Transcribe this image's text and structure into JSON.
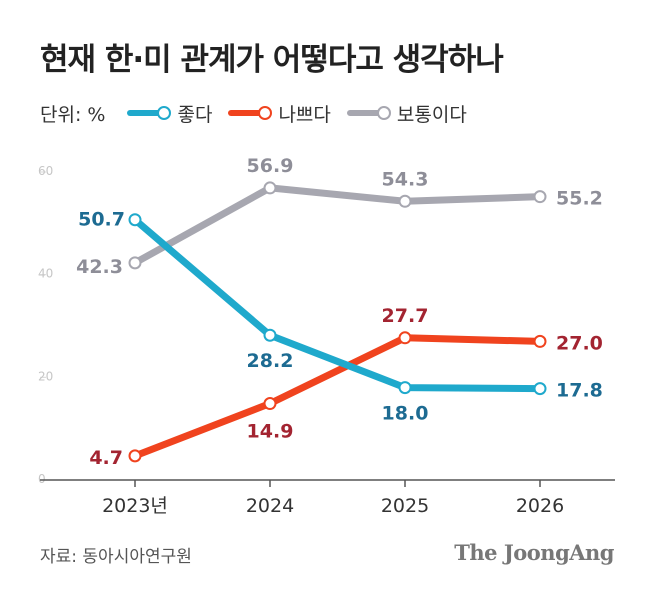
{
  "title": "현재 한·미 관계가 어떻다고 생각하나",
  "legend": {
    "unit": "단위: %",
    "items": [
      {
        "label": "좋다",
        "color": "#1fa9cc"
      },
      {
        "label": "나쁘다",
        "color": "#f0431e"
      },
      {
        "label": "보통이다",
        "color": "#a7a7b0"
      }
    ]
  },
  "source": "자료: 동아시아연구원",
  "brand": "The JoongAng",
  "chart_data": {
    "type": "line",
    "x": [
      "2023년",
      "2024",
      "2025",
      "2026"
    ],
    "ylim": [
      0,
      60
    ],
    "yticks": [
      "0",
      "20",
      "40",
      "60"
    ],
    "series": [
      {
        "name": "좋다",
        "values": [
          50.7,
          28.2,
          18.0,
          17.8
        ],
        "labels": [
          "50.7",
          "28.2",
          "18.0",
          "17.8"
        ],
        "color": "#1fa9cc",
        "label_color": "#1d6b92"
      },
      {
        "name": "나쁘다",
        "values": [
          4.7,
          14.9,
          27.7,
          27.0
        ],
        "labels": [
          "4.7",
          "14.9",
          "27.7",
          "27.0"
        ],
        "color": "#f0431e",
        "label_color": "#a32431"
      },
      {
        "name": "보통이다",
        "values": [
          42.3,
          56.9,
          54.3,
          55.2
        ],
        "labels": [
          "42.3",
          "56.9",
          "54.3",
          "55.2"
        ],
        "color": "#a7a7b0",
        "label_color": "#8e8e98"
      }
    ]
  }
}
